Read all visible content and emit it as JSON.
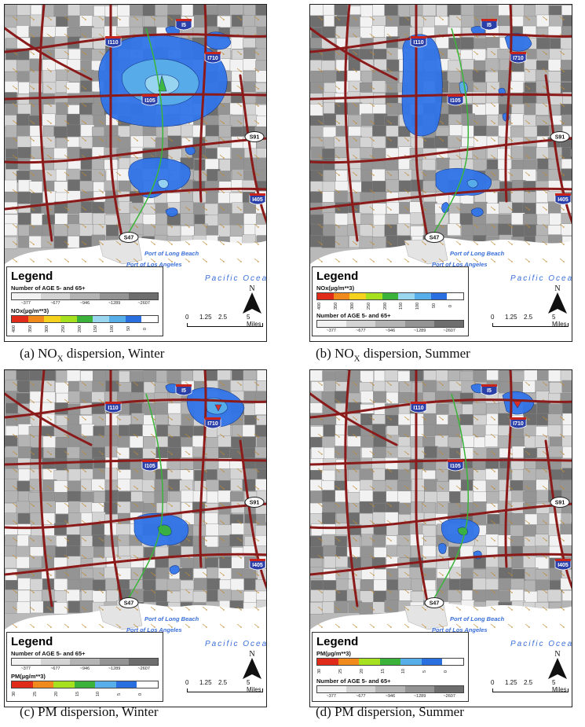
{
  "panels": [
    {
      "caption_prefix": "(a)  NO",
      "caption_sub": "X",
      "caption_suffix": " dispersion, Winter",
      "legend_title": "Legend",
      "age_label": "Number of AGE 5- and 65+",
      "age_ticks": [
        "~377",
        "~677",
        "~946",
        "~1289",
        "~2607"
      ],
      "pollutant_label": "NOx(µg/m**3)",
      "pollutant_ticks": [
        "400",
        "350",
        "300",
        "250",
        "200",
        "150",
        "100",
        "50",
        "0"
      ],
      "order": "age-first"
    },
    {
      "caption_prefix": "(b)  NO",
      "caption_sub": "X",
      "caption_suffix": " dispersion, Summer",
      "legend_title": "Legend",
      "age_label": "Number of AGE 5- and 65+",
      "age_ticks": [
        "~377",
        "~677",
        "~946",
        "~1289",
        "~2607"
      ],
      "pollutant_label": "NOx(µg/m**3)",
      "pollutant_ticks": [
        "400",
        "350",
        "300",
        "250",
        "200",
        "150",
        "100",
        "50",
        "0"
      ],
      "order": "pollutant-first"
    },
    {
      "caption_prefix": "(c)  PM dispersion, Winter",
      "caption_sub": "",
      "caption_suffix": "",
      "legend_title": "Legend",
      "age_label": "Number of AGE 5- and 65+",
      "age_ticks": [
        "~377",
        "~677",
        "~946",
        "~1289",
        "~2607"
      ],
      "pollutant_label": "PM(µg/m**3)",
      "pollutant_ticks": [
        "30",
        "25",
        "20",
        "15",
        "10",
        "5",
        "0"
      ],
      "order": "age-first"
    },
    {
      "caption_prefix": "(d)  PM dispersion, Summer",
      "caption_sub": "",
      "caption_suffix": "",
      "legend_title": "Legend",
      "age_label": "Number of AGE 5- and 65+",
      "age_ticks": [
        "~377",
        "~677",
        "~946",
        "~1289",
        "~2607"
      ],
      "pollutant_label": "PM(µg/m**3)",
      "pollutant_ticks": [
        "30",
        "25",
        "20",
        "15",
        "10",
        "5",
        "0"
      ],
      "order": "pollutant-first"
    }
  ],
  "map_labels": {
    "i5": "I5",
    "i110": "I110",
    "i710": "I710",
    "i105": "I105",
    "s91": "S91",
    "i605": "I605",
    "i405": "I405",
    "s47": "S47",
    "port_long_beach": "Port of Long Beach",
    "port_los_angeles": "Port of Los Angeles",
    "ocean": "Pacific Ocean",
    "north": "N",
    "scale_ticks": [
      "0",
      "1.25",
      "2.5",
      "5 Miles"
    ]
  },
  "colors": {
    "age_ramp": [
      "#f2f2f2",
      "#d4d4d4",
      "#b4b4b4",
      "#949494",
      "#6e6e6e"
    ],
    "pollutant_ramp_nox": [
      "#e02a1a",
      "#f08a1c",
      "#f5d21e",
      "#a6e01e",
      "#3bb33b",
      "#9bd6f0",
      "#58aee8",
      "#2a6fe0",
      "#ffffff"
    ],
    "pollutant_ramp_pm": [
      "#e02a1a",
      "#f08a1c",
      "#a6e01e",
      "#3bb33b",
      "#58aee8",
      "#2a6fe0",
      "#ffffff"
    ],
    "plume": "#2f74e8",
    "road": "#8b1a1a",
    "rail": "#39b539"
  }
}
